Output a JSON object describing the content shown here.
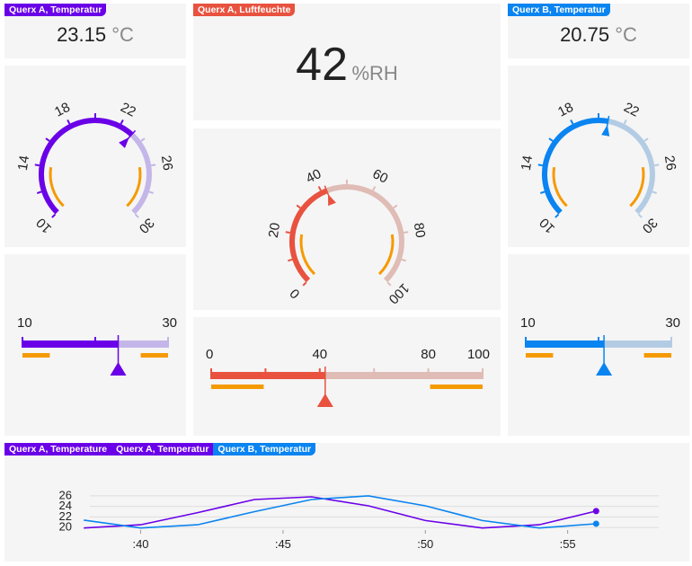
{
  "colors": {
    "purple": "#6a00e8",
    "purple_light": "#c4b6e8",
    "red": "#e8523f",
    "red_light": "#dfbcb5",
    "blue": "#0a84f0",
    "blue_light": "#b3cce4",
    "orange": "#f59a00"
  },
  "left": {
    "tag": "Querx A, Temperatur",
    "value": "23.15",
    "unit": "°C",
    "gauge": {
      "min": 10,
      "max": 30,
      "value": 23.15,
      "labels": [
        "10",
        "14",
        "18",
        "22",
        "26",
        "30"
      ],
      "warn_low": [
        10,
        14
      ],
      "warn_high": [
        26,
        30
      ]
    },
    "bar": {
      "min_label": "10",
      "max_label": "30",
      "value": 23.15
    }
  },
  "center": {
    "tag": "Querx A, Luftfeuchte",
    "value": "42",
    "unit": "%RH",
    "gauge": {
      "min": 0,
      "max": 100,
      "value": 42,
      "labels": [
        "0",
        "20",
        "40",
        "60",
        "80",
        "100"
      ],
      "warn_low": [
        0,
        20
      ],
      "warn_high": [
        80,
        100
      ]
    },
    "bar": {
      "labels": [
        "0",
        "40",
        "80",
        "100"
      ],
      "value": 42
    }
  },
  "right": {
    "tag": "Querx B, Temperatur",
    "value": "20.75",
    "unit": "°C",
    "gauge": {
      "min": 10,
      "max": 30,
      "value": 20.75,
      "labels": [
        "10",
        "14",
        "18",
        "22",
        "26",
        "30"
      ],
      "warn_low": [
        10,
        14
      ],
      "warn_high": [
        26,
        30
      ]
    },
    "bar": {
      "min_label": "10",
      "max_label": "30",
      "value": 20.75
    }
  },
  "chart": {
    "tags": [
      "Querx A, Temperature",
      "Querx A, Temperatur",
      "Querx B, Temperatur"
    ],
    "yticks": [
      "26",
      "24",
      "22",
      "20"
    ],
    "xticks": [
      ":40",
      ":45",
      ":50",
      ":55"
    ]
  },
  "chart_data": {
    "type": "line",
    "x_unit": "minutes",
    "ylim": [
      19.5,
      27
    ],
    "yticks": [
      20,
      22,
      24,
      26
    ],
    "xticks": [
      40,
      45,
      50,
      55
    ],
    "series": [
      {
        "name": "Querx A, Temperatur",
        "color": "#6a00e8",
        "x": [
          38,
          40,
          42,
          44,
          46,
          48,
          50,
          52,
          54,
          56
        ],
        "y": [
          19.9,
          20.5,
          22.8,
          25.3,
          25.8,
          24.1,
          21.3,
          19.9,
          20.5,
          23.1
        ]
      },
      {
        "name": "Querx B, Temperatur",
        "color": "#0a84f0",
        "x": [
          38,
          40,
          42,
          44,
          46,
          48,
          50,
          52,
          54,
          56
        ],
        "y": [
          21.4,
          19.9,
          20.5,
          23.0,
          25.3,
          26.0,
          24.1,
          21.3,
          19.9,
          20.7
        ]
      }
    ]
  }
}
